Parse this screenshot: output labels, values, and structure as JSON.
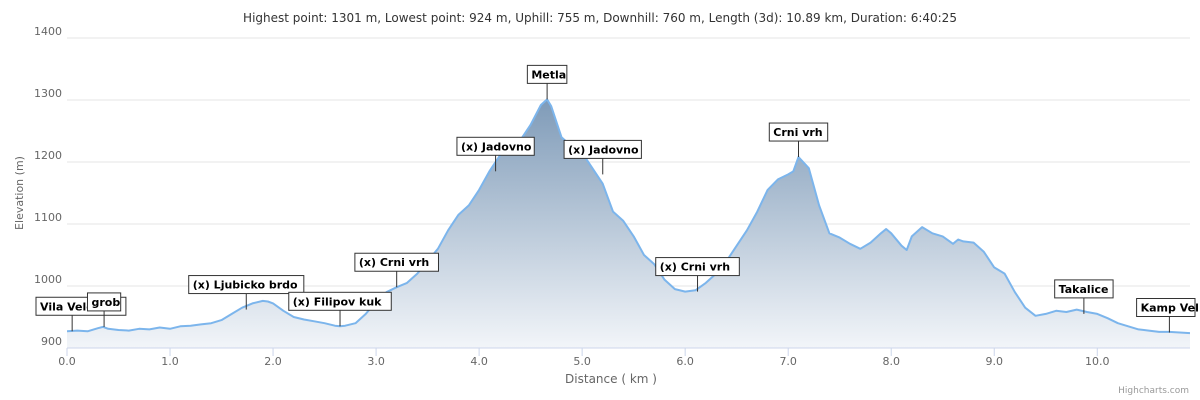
{
  "chart_data": {
    "type": "area",
    "title": "Highest point: 1301 m, Lowest point: 924 m, Uphill: 755 m, Downhill: 760 m, Length (3d): 10.89 km, Duration: 6:40:25",
    "xlabel": "Distance ( km )",
    "ylabel": "Elevation (m)",
    "xlim": [
      0,
      10.9
    ],
    "ylim": [
      900,
      1400
    ],
    "x_ticks": [
      0.0,
      1.0,
      2.0,
      3.0,
      4.0,
      5.0,
      6.0,
      7.0,
      8.0,
      9.0,
      10.0
    ],
    "x_tick_labels": [
      "0.0",
      "1.0",
      "2.0",
      "3.0",
      "4.0",
      "5.0",
      "6.0",
      "7.0",
      "8.0",
      "9.0",
      "10.0"
    ],
    "y_ticks": [
      900,
      1000,
      1100,
      1200,
      1300,
      1400
    ],
    "y_tick_labels": [
      "900",
      "1000",
      "1100",
      "1200",
      "1300",
      "1400"
    ],
    "grid": true,
    "legend": false,
    "colors": {
      "line": "#7cb5ec",
      "fill_top": "#7f9bb8",
      "fill_bottom": "#f2f5f9",
      "grid": "#e6e6e6"
    },
    "series": [
      {
        "x": [
          0.0,
          0.1,
          0.2,
          0.3,
          0.35,
          0.4,
          0.5,
          0.6,
          0.7,
          0.8,
          0.9,
          1.0,
          1.1,
          1.2,
          1.3,
          1.4,
          1.5,
          1.6,
          1.7,
          1.8,
          1.9,
          1.95,
          2.0,
          2.1,
          2.2,
          2.3,
          2.4,
          2.5,
          2.6,
          2.65,
          2.7,
          2.8,
          2.9,
          3.0,
          3.1,
          3.2,
          3.3,
          3.4,
          3.5,
          3.6,
          3.7,
          3.8,
          3.9,
          4.0,
          4.1,
          4.2,
          4.3,
          4.4,
          4.5,
          4.6,
          4.66,
          4.7,
          4.8,
          4.9,
          5.0,
          5.1,
          5.2,
          5.3,
          5.4,
          5.5,
          5.6,
          5.7,
          5.8,
          5.9,
          6.0,
          6.1,
          6.2,
          6.3,
          6.4,
          6.5,
          6.6,
          6.7,
          6.8,
          6.9,
          7.0,
          7.05,
          7.1,
          7.2,
          7.3,
          7.4,
          7.5,
          7.6,
          7.7,
          7.8,
          7.9,
          7.95,
          8.0,
          8.1,
          8.15,
          8.2,
          8.3,
          8.4,
          8.5,
          8.6,
          8.65,
          8.7,
          8.8,
          8.9,
          9.0,
          9.1,
          9.2,
          9.3,
          9.4,
          9.5,
          9.6,
          9.7,
          9.8,
          9.9,
          10.0,
          10.1,
          10.2,
          10.3,
          10.4,
          10.5,
          10.6,
          10.7,
          10.8,
          10.9
        ],
        "y": [
          927,
          928,
          927,
          932,
          934,
          931,
          929,
          928,
          931,
          930,
          933,
          931,
          935,
          936,
          938,
          940,
          945,
          955,
          965,
          972,
          976,
          975,
          972,
          960,
          950,
          946,
          943,
          940,
          936,
          935,
          936,
          940,
          955,
          975,
          990,
          998,
          1005,
          1020,
          1040,
          1060,
          1090,
          1115,
          1130,
          1155,
          1185,
          1210,
          1230,
          1235,
          1260,
          1292,
          1301,
          1290,
          1240,
          1225,
          1215,
          1190,
          1165,
          1120,
          1105,
          1080,
          1050,
          1035,
          1010,
          995,
          991,
          993,
          1005,
          1020,
          1040,
          1065,
          1090,
          1120,
          1155,
          1172,
          1180,
          1185,
          1208,
          1190,
          1130,
          1085,
          1078,
          1068,
          1060,
          1070,
          1085,
          1092,
          1085,
          1065,
          1058,
          1080,
          1095,
          1085,
          1080,
          1068,
          1075,
          1072,
          1070,
          1055,
          1030,
          1020,
          990,
          965,
          952,
          955,
          960,
          958,
          962,
          958,
          955,
          948,
          940,
          935,
          930,
          928,
          926,
          926,
          925,
          924
        ]
      }
    ],
    "annotations": [
      {
        "text": "Vila Velebita",
        "x": 0.05,
        "y": 927
      },
      {
        "text": "grob",
        "x": 0.36,
        "y": 934
      },
      {
        "text": "(x) Ljubicko brdo",
        "x": 1.74,
        "y": 962
      },
      {
        "text": "(x) Filipov kuk",
        "x": 2.65,
        "y": 935
      },
      {
        "text": "(x) Crni vrh",
        "x": 3.2,
        "y": 998
      },
      {
        "text": "(x) Jadovno",
        "x": 4.16,
        "y": 1185
      },
      {
        "text": "Metla",
        "x": 4.66,
        "y": 1301
      },
      {
        "text": "(x) Jadovno",
        "x": 5.2,
        "y": 1180
      },
      {
        "text": "(x) Crni vrh",
        "x": 6.12,
        "y": 991
      },
      {
        "text": "Crni vrh",
        "x": 7.1,
        "y": 1208
      },
      {
        "text": "Takalice",
        "x": 9.87,
        "y": 955
      },
      {
        "text": "Kamp Vel",
        "x": 10.7,
        "y": 925
      }
    ]
  },
  "footer": {
    "credits": "Highcharts.com"
  }
}
